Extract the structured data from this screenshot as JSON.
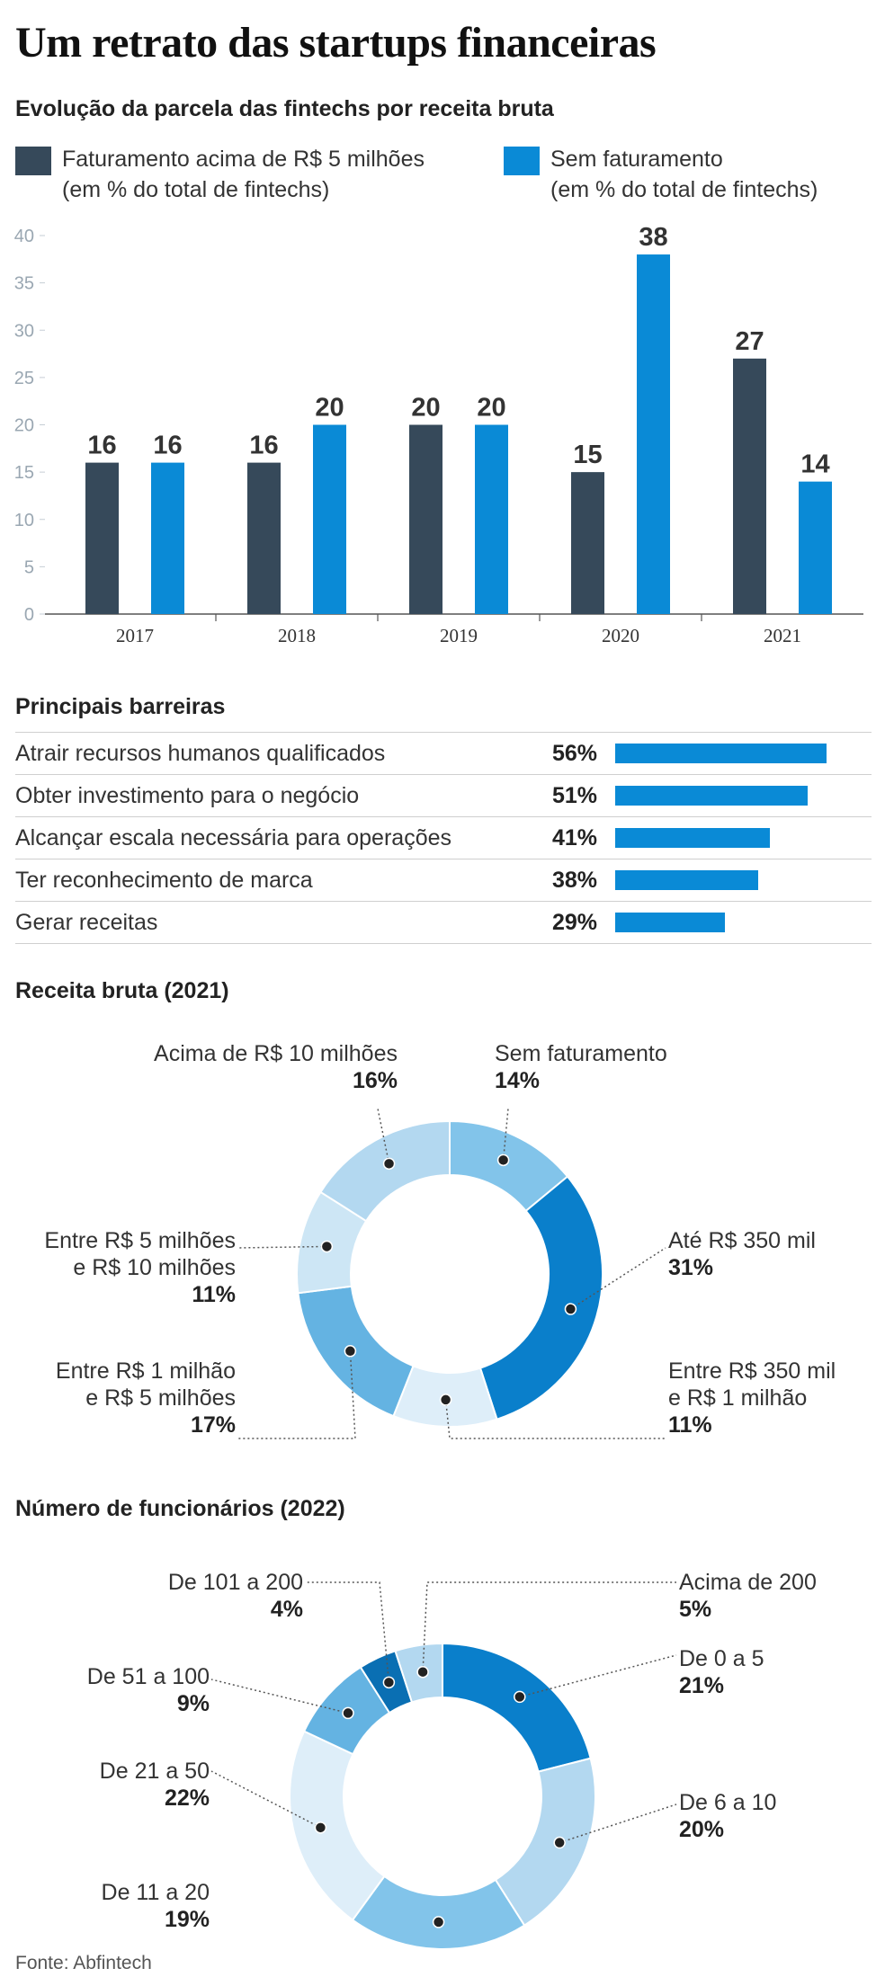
{
  "title": "Um retrato das startups financeiras",
  "bar_section": {
    "subtitle": "Evolução da parcela das fintechs por receita bruta",
    "legend": [
      {
        "line1": "Faturamento acima de R$ 5 milhões",
        "line2": "(em % do total de fintechs)",
        "color": "#36495a"
      },
      {
        "line1": "Sem faturamento",
        "line2": "(em % do total de fintechs)",
        "color": "#0a8ad6"
      }
    ]
  },
  "barriers": {
    "title": "Principais barreiras",
    "items": [
      {
        "label": "Atrair recursos humanos qualificados",
        "pct_text": "56%",
        "value": 56
      },
      {
        "label": "Obter investimento para o negócio",
        "pct_text": "51%",
        "value": 51
      },
      {
        "label": "Alcançar escala necessária para operações",
        "pct_text": "41%",
        "value": 41
      },
      {
        "label": "Ter reconhecimento de marca",
        "pct_text": "38%",
        "value": 38
      },
      {
        "label": "Gerar receitas",
        "pct_text": "29%",
        "value": 29
      }
    ]
  },
  "revenue": {
    "title": "Receita bruta (2021)",
    "labels": {
      "acima10": {
        "l1": "Acima de R$ 10 milhões",
        "pct": "16%"
      },
      "sem": {
        "l1": "Sem faturamento",
        "pct": "14%"
      },
      "ate350": {
        "l1": "Até R$ 350 mil",
        "pct": "31%"
      },
      "e350a1": {
        "l1": "Entre R$ 350 mil",
        "l2": "e R$ 1 milhão",
        "pct": "11%"
      },
      "e1a5": {
        "l1": "Entre R$ 1 milhão",
        "l2": "e R$ 5 milhões",
        "pct": "17%"
      },
      "e5a10": {
        "l1": "Entre R$ 5 milhões",
        "l2": "e R$ 10 milhões",
        "pct": "11%"
      }
    }
  },
  "employees": {
    "title": "Número de funcionários (2022)",
    "labels": {
      "acima200": {
        "l1": "Acima de 200",
        "pct": "5%"
      },
      "d0a5": {
        "l1": "De 0 a 5",
        "pct": "21%"
      },
      "d6a10": {
        "l1": "De 6 a 10",
        "pct": "20%"
      },
      "d11a20": {
        "l1": "De 11 a 20",
        "pct": "19%"
      },
      "d21a50": {
        "l1": "De 21 a 50",
        "pct": "22%"
      },
      "d51a100": {
        "l1": "De 51 a 100",
        "pct": "9%"
      },
      "d101a200": {
        "l1": "De 101 a 200",
        "pct": "4%"
      }
    }
  },
  "source": "Fonte: Abfintech",
  "chart_data": [
    {
      "type": "bar",
      "title": "Evolução da parcela das fintechs por receita bruta",
      "categories": [
        "2017",
        "2018",
        "2019",
        "2020",
        "2021"
      ],
      "series": [
        {
          "name": "Faturamento acima de R$ 5 milhões (em % do total de fintechs)",
          "values": [
            16,
            16,
            20,
            15,
            27
          ],
          "color": "#36495a"
        },
        {
          "name": "Sem faturamento (em % do total de fintechs)",
          "values": [
            16,
            20,
            20,
            38,
            14
          ],
          "color": "#0a8ad6"
        }
      ],
      "ylim": [
        0,
        40
      ],
      "yticks": [
        0,
        5,
        10,
        15,
        20,
        25,
        30,
        35,
        40
      ],
      "grid": false,
      "legend": "top"
    },
    {
      "type": "bar",
      "title": "Principais barreiras",
      "categories": [
        "Atrair recursos humanos qualificados",
        "Obter investimento para o negócio",
        "Alcançar escala necessária para operações",
        "Ter reconhecimento de marca",
        "Gerar receitas"
      ],
      "values": [
        56,
        51,
        41,
        38,
        29
      ],
      "orientation": "horizontal"
    },
    {
      "type": "pie",
      "title": "Receita bruta (2021)",
      "donut": true,
      "labels": [
        "Sem faturamento",
        "Até R$ 350 mil",
        "Entre R$ 350 mil e R$ 1 milhão",
        "Entre R$ 1 milhão e R$ 5 milhões",
        "Entre R$ 5 milhões e R$ 10 milhões",
        "Acima de R$ 10 milhões"
      ],
      "values": [
        14,
        31,
        11,
        17,
        11,
        16
      ],
      "colors": [
        "#82c4ea",
        "#0a7fcb",
        "#deeef9",
        "#64b3e2",
        "#cde6f5",
        "#b3d8f0"
      ]
    },
    {
      "type": "pie",
      "title": "Número de funcionários (2022)",
      "donut": true,
      "labels": [
        "De 0 a 5",
        "De 6 a 10",
        "De 11 a 20",
        "De 21 a 50",
        "De 51 a 100",
        "De 101 a 200",
        "Acima de 200"
      ],
      "values": [
        21,
        20,
        19,
        22,
        9,
        4,
        5
      ],
      "colors": [
        "#0a7fcb",
        "#b3d8f0",
        "#82c4ea",
        "#deeef9",
        "#64b3e2",
        "#0a6fb3",
        "#b3d8f0"
      ]
    }
  ]
}
